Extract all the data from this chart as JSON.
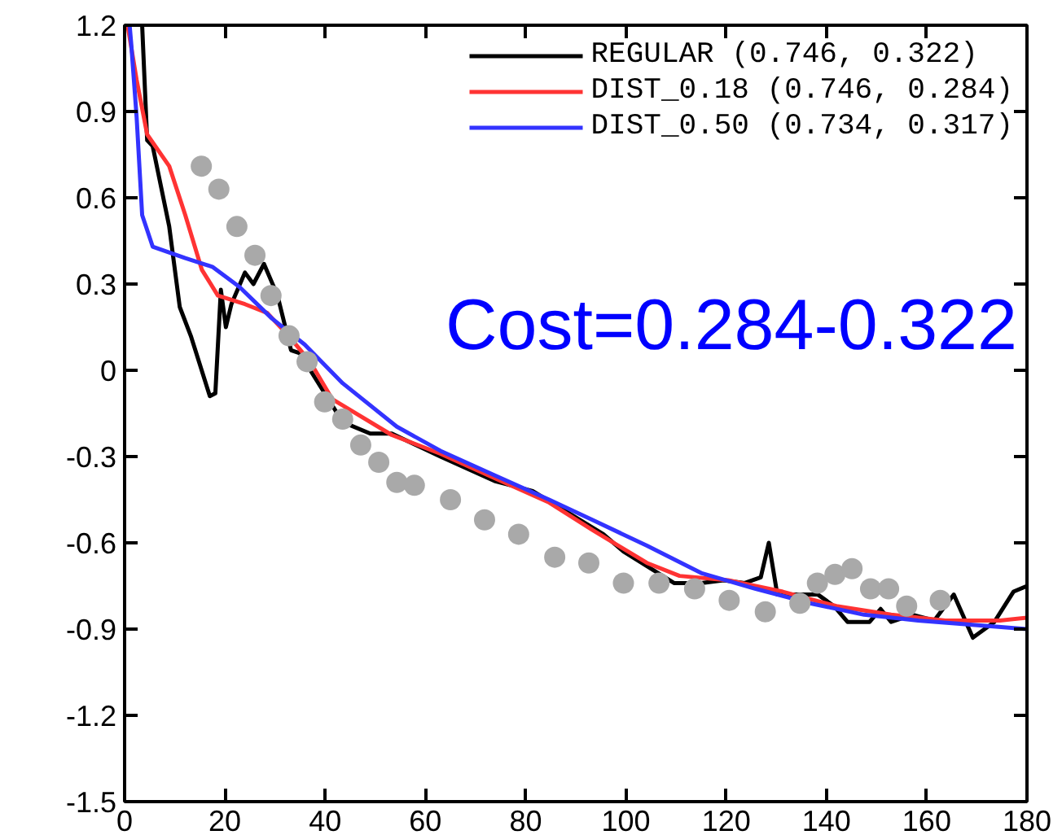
{
  "chart_data": {
    "type": "line",
    "annotations": [
      "Cost=0.284-0.322"
    ],
    "xlim": [
      0,
      180
    ],
    "ylim": [
      -1.5,
      1.2
    ],
    "xticks": [
      0,
      20,
      40,
      60,
      80,
      100,
      120,
      140,
      160,
      180
    ],
    "yticks": [
      -1.5,
      -1.2,
      -0.9,
      -0.6,
      -0.3,
      0,
      0.3,
      0.6,
      0.9,
      1.2
    ],
    "grid": false,
    "legend": "top right",
    "line_style": "solid",
    "series": [
      {
        "name": "REGULAR (0.746, 0.322)",
        "color": "#000000",
        "marker": "none",
        "x": [
          3.5,
          4.5,
          5.6,
          8.9,
          11,
          13.2,
          17,
          18.1,
          19.2,
          20.2,
          21.3,
          24,
          25.7,
          27.8,
          30.5,
          33.2,
          34.9,
          39.2,
          43.5,
          49,
          53.3,
          63,
          73.8,
          81.4,
          95.5,
          99.5,
          109.6,
          115,
          119.5,
          123.7,
          126.9,
          128.5,
          130.2,
          134.5,
          138.3,
          141.5,
          144.2,
          148.6,
          150.8,
          152.9,
          157.2,
          161.5,
          165.4,
          169.2,
          173.5,
          177.3,
          180
        ],
        "values": [
          1.2,
          0.8,
          0.78,
          0.5,
          0.22,
          0.12,
          -0.09,
          -0.08,
          0.28,
          0.15,
          0.23,
          0.34,
          0.3,
          0.37,
          0.26,
          0.07,
          0.06,
          -0.06,
          -0.18,
          -0.22,
          -0.22,
          -0.3,
          -0.385,
          -0.42,
          -0.57,
          -0.63,
          -0.74,
          -0.74,
          -0.73,
          -0.74,
          -0.72,
          -0.6,
          -0.78,
          -0.78,
          -0.78,
          -0.82,
          -0.875,
          -0.875,
          -0.83,
          -0.875,
          -0.85,
          -0.87,
          -0.78,
          -0.93,
          -0.875,
          -0.77,
          -0.75
        ]
      },
      {
        "name": "DIST_0.18 (0.746, 0.284)",
        "color": "#ff3333",
        "marker": "none",
        "x": [
          0.6,
          2.4,
          4.5,
          8.9,
          12.1,
          15.4,
          18.6,
          24,
          28.4,
          32.7,
          37,
          41.4,
          53.3,
          63,
          73.8,
          84.7,
          93.3,
          104.2,
          110.7,
          120.4,
          131.3,
          142,
          152.9,
          163.7,
          174.6,
          180
        ],
        "values": [
          1.2,
          1.01,
          0.82,
          0.71,
          0.54,
          0.35,
          0.26,
          0.23,
          0.2,
          0.12,
          0.03,
          -0.1,
          -0.225,
          -0.29,
          -0.375,
          -0.46,
          -0.555,
          -0.67,
          -0.715,
          -0.73,
          -0.77,
          -0.82,
          -0.85,
          -0.87,
          -0.87,
          -0.86
        ]
      },
      {
        "name": "DIST_0.50 (0.734, 0.317)",
        "color": "#3333ff",
        "marker": "none",
        "x": [
          1,
          1.3,
          2.4,
          3.5,
          5.6,
          12.1,
          17.5,
          22.9,
          29.4,
          35.9,
          43.5,
          54.3,
          63,
          73.8,
          84.7,
          93.3,
          104.2,
          115,
          125.9,
          136.7,
          147.5,
          158.3,
          169.2,
          180
        ],
        "values": [
          1.2,
          1.14,
          0.88,
          0.54,
          0.43,
          0.39,
          0.36,
          0.29,
          0.18,
          0.09,
          -0.045,
          -0.196,
          -0.28,
          -0.365,
          -0.45,
          -0.52,
          -0.61,
          -0.705,
          -0.76,
          -0.81,
          -0.85,
          -0.87,
          -0.885,
          -0.9
        ]
      },
      {
        "color": "#a9a9a9",
        "type": "scatter",
        "marker": "circle",
        "x": [
          15.3,
          18.8,
          22.4,
          26,
          29.2,
          32.8,
          36.4,
          39.9,
          43.5,
          47.1,
          50.7,
          54.3,
          57.8,
          65,
          71.8,
          78.6,
          85.8,
          92.6,
          99.5,
          106.6,
          113.7,
          120.6,
          127.8,
          134.7,
          138.2,
          141.7,
          145.1,
          148.8,
          152.4,
          156,
          162.7
        ],
        "values": [
          0.71,
          0.63,
          0.5,
          0.4,
          0.26,
          0.12,
          0.03,
          -0.11,
          -0.17,
          -0.26,
          -0.32,
          -0.39,
          -0.4,
          -0.45,
          -0.52,
          -0.57,
          -0.65,
          -0.67,
          -0.74,
          -0.74,
          -0.76,
          -0.8,
          -0.84,
          -0.81,
          -0.74,
          -0.71,
          -0.69,
          -0.76,
          -0.76,
          -0.82,
          -0.8
        ]
      }
    ]
  }
}
